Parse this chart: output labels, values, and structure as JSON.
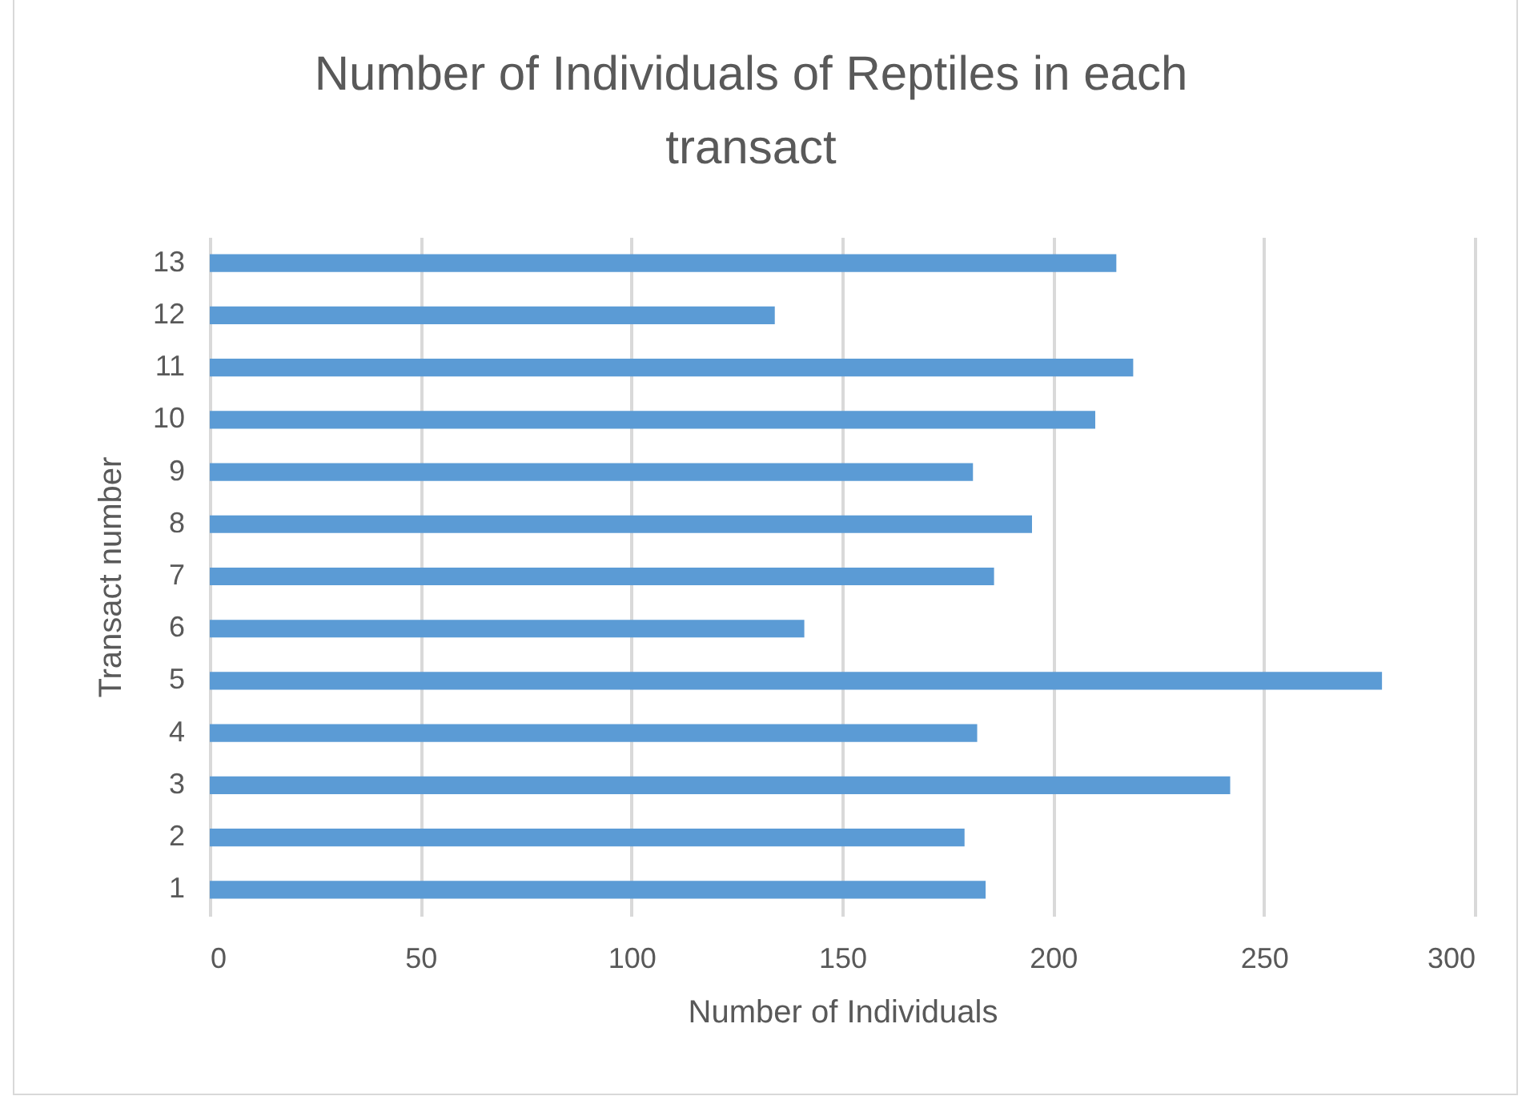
{
  "chart_data": {
    "type": "bar",
    "orientation": "horizontal",
    "title": "Number of Individuals of Reptiles in each transact",
    "xlabel": "Number of Individuals",
    "ylabel": "Transact number",
    "categories": [
      "13",
      "12",
      "11",
      "10",
      "9",
      "8",
      "7",
      "6",
      "5",
      "4",
      "3",
      "2",
      "1"
    ],
    "values": [
      215,
      134,
      219,
      210,
      181,
      195,
      186,
      141,
      278,
      182,
      242,
      179,
      184
    ],
    "color": "#5b9bd5",
    "xlim": [
      0,
      300
    ],
    "xticks": [
      0,
      50,
      100,
      150,
      200,
      250,
      300
    ],
    "grid": "x"
  }
}
